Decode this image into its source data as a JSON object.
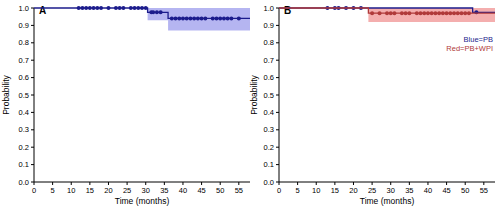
{
  "chart_data": [
    {
      "type": "line",
      "title": "A",
      "x_label": "Time (months)",
      "y_label": "Probability",
      "xlim": [
        0,
        58
      ],
      "xticks": [
        0,
        5,
        10,
        15,
        20,
        25,
        30,
        35,
        40,
        45,
        50,
        55
      ],
      "ylim": [
        0,
        1
      ],
      "yticks": [
        {
          "value": 0,
          "label": "0.0"
        },
        0.1,
        0.2,
        0.3,
        0.4,
        0.5,
        0.6,
        0.7,
        0.8,
        0.9,
        {
          "value": 1,
          "label": "1.0"
        }
      ],
      "line_style": "step",
      "marker": "circle",
      "series": [
        {
          "color": "#1c1c8c",
          "band_color": "#a8a8ee",
          "x": [
            0,
            30.5,
            36,
            58
          ],
          "values": [
            1,
            0.975,
            0.94,
            0.94
          ],
          "ci_lower": [
            1,
            0.93,
            0.87,
            0.87
          ],
          "ci_upper": [
            1,
            1,
            1,
            1
          ],
          "censor_x": [
            12,
            13,
            14,
            15,
            16,
            17,
            18,
            20,
            22,
            23,
            24,
            26,
            27,
            28,
            29,
            30,
            31.5,
            32,
            33,
            34,
            37,
            38,
            39,
            40,
            41,
            42,
            43,
            44,
            45,
            46,
            48,
            49,
            50,
            51,
            52,
            53,
            55
          ]
        }
      ]
    },
    {
      "type": "line",
      "title": "B",
      "x_label": "Time (months)",
      "y_label": "Probability",
      "xlim": [
        0,
        58
      ],
      "xticks": [
        0,
        5,
        10,
        15,
        20,
        25,
        30,
        35,
        40,
        45,
        50,
        55
      ],
      "ylim": [
        0,
        1
      ],
      "yticks": [
        {
          "value": 0,
          "label": "0.0"
        },
        0.1,
        0.2,
        0.3,
        0.4,
        0.5,
        0.6,
        0.7,
        0.8,
        0.9,
        {
          "value": 1,
          "label": "1.0"
        }
      ],
      "line_style": "step",
      "marker": "circle",
      "legend": "right",
      "series": [
        {
          "name": "Blue=PB",
          "color": "#1c1c8c",
          "x": [
            0,
            52,
            58
          ],
          "values": [
            1,
            0.975,
            0.975
          ],
          "censor_x": [
            13,
            15,
            16,
            18,
            20,
            22,
            53
          ]
        },
        {
          "name": "Red=PB+WPI",
          "color": "#b03a3a",
          "band_color": "#f2a0a0",
          "x": [
            0,
            24,
            58
          ],
          "values": [
            1,
            0.97,
            0.97
          ],
          "ci_lower": [
            1,
            0.92,
            0.92
          ],
          "ci_upper": [
            1,
            1,
            1
          ],
          "censor_x": [
            25,
            27,
            29,
            30,
            31,
            33,
            34,
            35,
            37,
            38,
            39,
            40,
            41,
            42,
            43,
            44,
            45,
            46,
            47,
            48,
            49,
            50,
            51
          ]
        }
      ]
    }
  ]
}
